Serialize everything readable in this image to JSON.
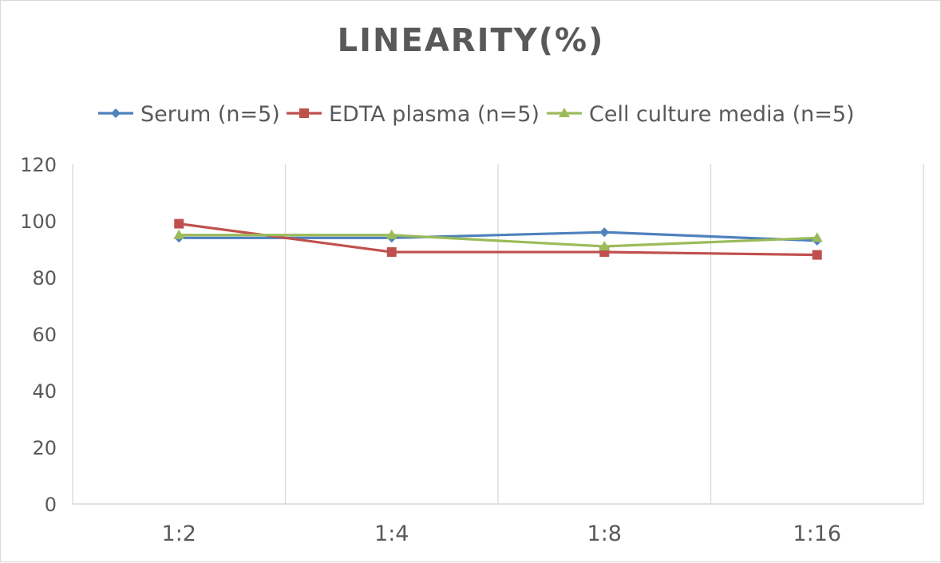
{
  "chart_data": {
    "type": "line",
    "title": "LINEARITY(%)",
    "xlabel": "",
    "ylabel": "",
    "categories": [
      "1:2",
      "1:4",
      "1:8",
      "1:16"
    ],
    "ylim": [
      0,
      120
    ],
    "yticks": [
      0,
      20,
      40,
      60,
      80,
      100,
      120
    ],
    "grid": "vertical",
    "legend_position": "top",
    "series": [
      {
        "name": "Serum (n=5)",
        "values": [
          94,
          94,
          96,
          93
        ],
        "color": "#4f81bd",
        "marker": "diamond"
      },
      {
        "name": "EDTA plasma (n=5)",
        "values": [
          99,
          89,
          89,
          88
        ],
        "color": "#c0504d",
        "marker": "square"
      },
      {
        "name": "Cell culture media (n=5)",
        "values": [
          95,
          95,
          91,
          94
        ],
        "color": "#9bbb59",
        "marker": "triangle"
      }
    ]
  }
}
